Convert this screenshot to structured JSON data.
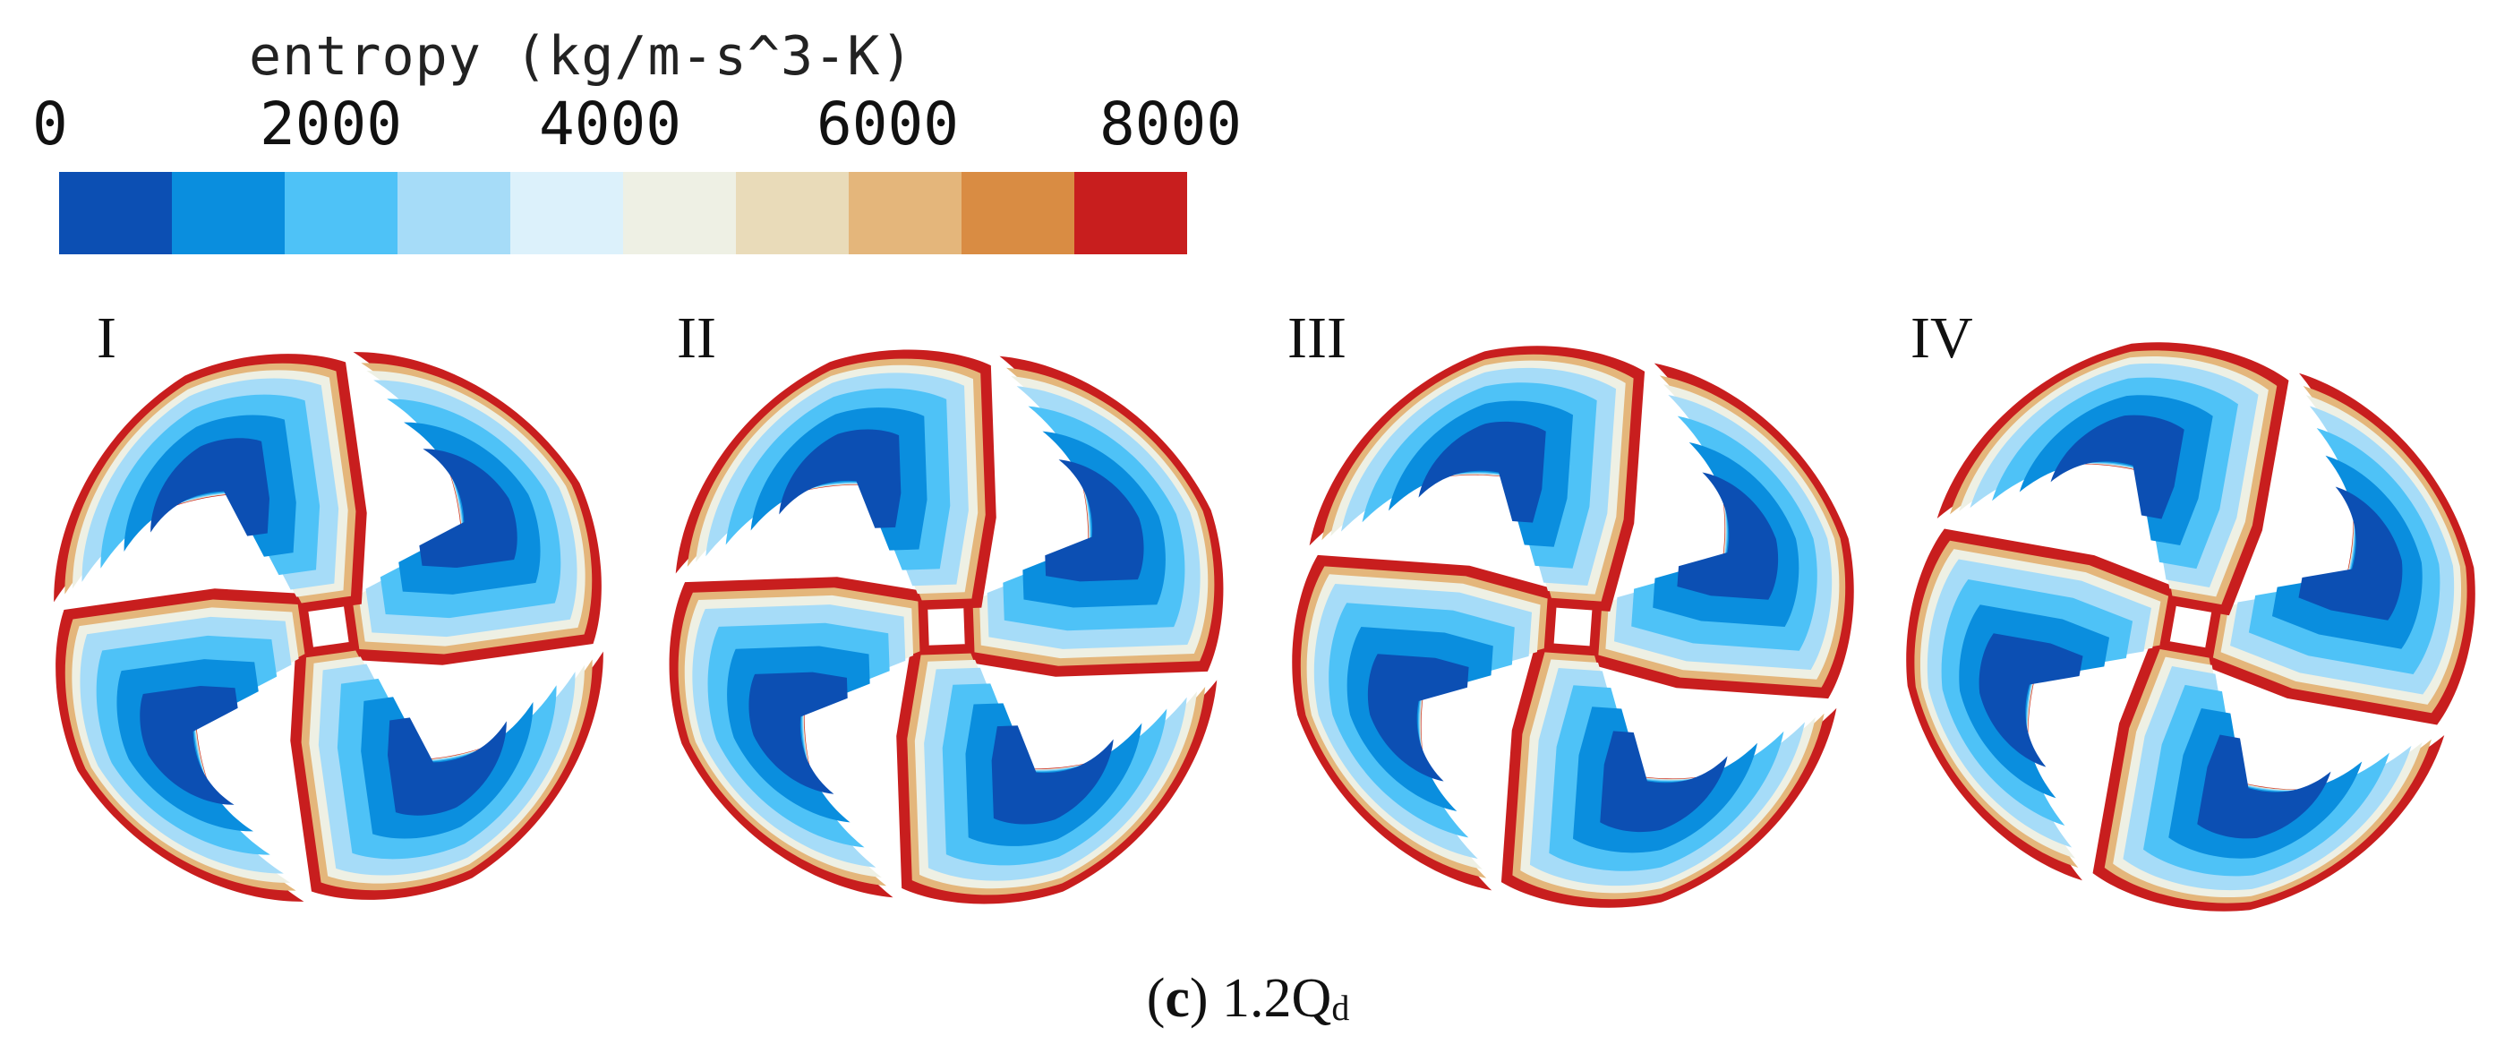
{
  "colorbar": {
    "title": "entropy (kg/m-s^3-K)",
    "ticks": [
      "0",
      "2000",
      "4000",
      "6000",
      "8000"
    ],
    "colors": [
      "#0c4fb3",
      "#0a8ede",
      "#4ec2f7",
      "#a6dcf8",
      "#dcf1fb",
      "#eef0e4",
      "#e9dbb9",
      "#e4b67b",
      "#d98c43",
      "#c81e1e"
    ]
  },
  "panels": [
    {
      "label": "I"
    },
    {
      "label": "II"
    },
    {
      "label": "III"
    },
    {
      "label": "IV"
    }
  ],
  "caption": {
    "letter": "c",
    "condition": "1.2Q",
    "subscript": "d"
  }
}
